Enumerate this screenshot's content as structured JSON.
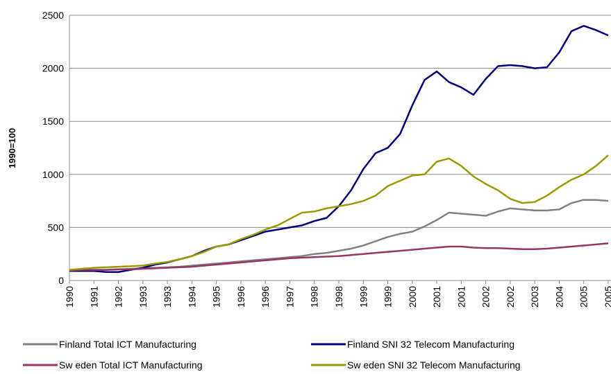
{
  "chart_data": {
    "type": "line",
    "ylabel": "1990=100",
    "categories": [
      "1990",
      null,
      "1991",
      null,
      "1992",
      null,
      "1993",
      null,
      "1993",
      null,
      "1994",
      null,
      "1995",
      null,
      "1996",
      null,
      "1996",
      null,
      "1997",
      null,
      "1998",
      null,
      "1998",
      null,
      "1999",
      null,
      "1999",
      null,
      "2000",
      null,
      "2001",
      null,
      "2001",
      null,
      "2002",
      null,
      "2002",
      null,
      "2003",
      null,
      "2004",
      null,
      "2005",
      null,
      "2005"
    ],
    "series": [
      {
        "name": "Finland Total ICT Manufacturing",
        "color": "#808080",
        "values": [
          95,
          100,
          100,
          100,
          105,
          110,
          115,
          120,
          125,
          130,
          140,
          150,
          160,
          170,
          180,
          190,
          200,
          210,
          220,
          230,
          250,
          260,
          280,
          300,
          330,
          370,
          410,
          440,
          460,
          510,
          570,
          640,
          630,
          620,
          610,
          650,
          680,
          670,
          660,
          660,
          670,
          730,
          760,
          760,
          750
        ]
      },
      {
        "name": "Finland SNI 32 Telecom Manufacturing",
        "color": "#000080",
        "values": [
          90,
          90,
          90,
          80,
          80,
          100,
          120,
          150,
          170,
          200,
          230,
          280,
          320,
          340,
          380,
          420,
          460,
          480,
          500,
          520,
          560,
          590,
          700,
          850,
          1050,
          1200,
          1250,
          1380,
          1650,
          1890,
          1970,
          1870,
          1820,
          1750,
          1900,
          2020,
          2030,
          2020,
          2000,
          2010,
          2150,
          2350,
          2400,
          2360,
          2310
        ]
      },
      {
        "name": "Sw eden Total ICT Manufacturing",
        "color": "#993366",
        "values": [
          95,
          100,
          100,
          100,
          105,
          105,
          110,
          115,
          120,
          125,
          130,
          140,
          150,
          160,
          170,
          180,
          190,
          200,
          210,
          215,
          220,
          225,
          230,
          240,
          250,
          260,
          270,
          280,
          290,
          300,
          310,
          320,
          320,
          310,
          305,
          305,
          300,
          295,
          295,
          300,
          310,
          320,
          330,
          340,
          350
        ]
      },
      {
        "name": "Sw eden SNI 32 Telecom Manufacturing",
        "color": "#999900",
        "values": [
          100,
          110,
          120,
          125,
          130,
          135,
          140,
          160,
          175,
          200,
          230,
          270,
          320,
          340,
          390,
          430,
          480,
          520,
          580,
          640,
          650,
          680,
          700,
          720,
          750,
          800,
          890,
          940,
          990,
          1000,
          1120,
          1150,
          1080,
          980,
          910,
          850,
          770,
          730,
          740,
          800,
          880,
          950,
          1000,
          1080,
          1180
        ]
      }
    ],
    "ylim": [
      0,
      2500
    ],
    "yticks": [
      0,
      500,
      1000,
      1500,
      2000,
      2500
    ],
    "grid": true
  }
}
